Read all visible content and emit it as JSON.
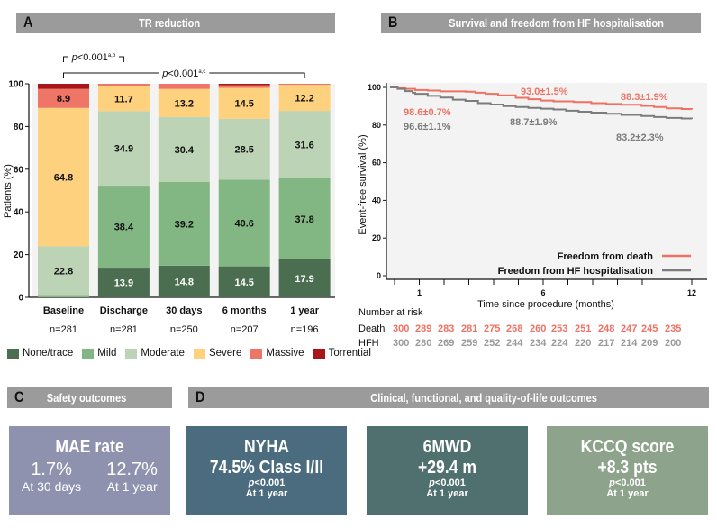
{
  "panels": {
    "A": {
      "letter": "A",
      "title": "TR reduction"
    },
    "B": {
      "letter": "B",
      "title": "Survival and freedom from HF hospitalisation"
    },
    "C": {
      "letter": "C",
      "title": "Safety outcomes"
    },
    "D": {
      "letter": "D",
      "title": "Clinical, functional, and quality-of-life outcomes"
    }
  },
  "chart_data": [
    {
      "type": "bar",
      "stacked": true,
      "title": "TR reduction",
      "ylabel": "Patients (%)",
      "ylim": [
        0,
        100
      ],
      "yticks": [
        "0",
        "20",
        "40",
        "60",
        "80",
        "100"
      ],
      "categories": [
        "Baseline",
        "Discharge",
        "30 days",
        "6 months",
        "1 year"
      ],
      "n_labels": [
        "n=281",
        "n=281",
        "n=250",
        "n=207",
        "n=196"
      ],
      "series": [
        {
          "name": "None/trace",
          "color": "#4a6e4f",
          "values": [
            0,
            13.9,
            14.8,
            14.5,
            17.9
          ],
          "labels": [
            "",
            "13.9",
            "14.8",
            "14.5",
            "17.9"
          ],
          "label_color": "#ffffff"
        },
        {
          "name": "Mild",
          "color": "#82b784",
          "values": [
            1.1,
            38.4,
            39.2,
            40.6,
            37.8
          ],
          "labels": [
            "",
            "38.4",
            "39.2",
            "40.6",
            "37.8"
          ],
          "label_color": "#111111"
        },
        {
          "name": "Moderate",
          "color": "#bcd3b6",
          "values": [
            22.8,
            34.9,
            30.4,
            28.5,
            31.6
          ],
          "labels": [
            "22.8",
            "34.9",
            "30.4",
            "28.5",
            "31.6"
          ],
          "label_color": "#111111"
        },
        {
          "name": "Severe",
          "color": "#fdd17e",
          "values": [
            64.8,
            11.7,
            13.2,
            14.5,
            12.2
          ],
          "labels": [
            "64.8",
            "11.7",
            "13.2",
            "14.5",
            "12.2"
          ],
          "label_color": "#111111"
        },
        {
          "name": "Massive",
          "color": "#ef7567",
          "values": [
            8.9,
            1.1,
            2.4,
            1.2,
            0.5
          ],
          "labels": [
            "8.9",
            "",
            "",
            "",
            ""
          ],
          "label_color": "#111111"
        },
        {
          "name": "Torrential",
          "color": "#a8161a",
          "values": [
            2.4,
            0,
            0,
            0.7,
            0
          ],
          "labels": [
            "",
            "",
            "",
            "",
            ""
          ],
          "label_color": "#ffffff"
        }
      ],
      "annotations": [
        {
          "text": "p<0.001",
          "sup": "a,b",
          "from": "Baseline",
          "to": "Discharge"
        },
        {
          "text": "p<0.001",
          "sup": "a,c",
          "from": "Baseline",
          "to": "1 year"
        }
      ]
    },
    {
      "type": "line",
      "title": "Survival and freedom from HF hospitalisation",
      "ylabel": "Event-free survival (%)",
      "xlabel": "Time since procedure (months)",
      "ylim": [
        0,
        100
      ],
      "xlim": [
        0,
        12.5
      ],
      "yticks": [
        "0",
        "20",
        "40",
        "60",
        "80",
        "100"
      ],
      "xtick_labels": [
        {
          "x": 1,
          "label": "1"
        },
        {
          "x": 6,
          "label": "6"
        },
        {
          "x": 12,
          "label": "12"
        }
      ],
      "xticks_minor": [
        0,
        1,
        2,
        3,
        4,
        5,
        6,
        7,
        8,
        9,
        10,
        11,
        12
      ],
      "legend": "bottom-right",
      "series": [
        {
          "name": "Freedom from death",
          "color": "#ee7163",
          "x": [
            0,
            0.3,
            0.6,
            1,
            1.5,
            2,
            2.5,
            3,
            3.4,
            3.8,
            4.3,
            5,
            5.5,
            6,
            6.5,
            7.3,
            8,
            8.6,
            9.2,
            10,
            10.5,
            11,
            11.6,
            12
          ],
          "y": [
            100,
            99.6,
            99.2,
            98.6,
            98.3,
            97.9,
            97.9,
            97.7,
            97.2,
            96.6,
            95.8,
            94.5,
            93.7,
            93.0,
            92.6,
            92.2,
            91.6,
            91.2,
            90.8,
            90.2,
            89.6,
            88.9,
            88.5,
            88.3
          ]
        },
        {
          "name": "Freedom from HF hospitalisation",
          "color": "#7c7c7c",
          "x": [
            0,
            0.3,
            0.6,
            0.9,
            1,
            1.5,
            2,
            2.5,
            3,
            3.5,
            4,
            4.5,
            5,
            5.5,
            6,
            6.5,
            7,
            7.5,
            8,
            8.6,
            9.2,
            10,
            10.5,
            11,
            11.6,
            12
          ],
          "y": [
            100,
            99.2,
            98.0,
            97.2,
            96.6,
            95.5,
            94.6,
            93.5,
            92.8,
            91.6,
            90.9,
            90.1,
            89.6,
            89.1,
            88.7,
            88.3,
            87.6,
            87.1,
            86.6,
            86.0,
            85.4,
            84.8,
            84.3,
            83.8,
            83.5,
            83.2
          ]
        }
      ],
      "annotations": [
        {
          "text": "98.6±0.7%",
          "series": "Freedom from death"
        },
        {
          "text": "93.0±1.5%",
          "series": "Freedom from death"
        },
        {
          "text": "88.3±1.9%",
          "series": "Freedom from death"
        },
        {
          "text": "96.6±1.1%",
          "series": "Freedom from HF hospitalisation"
        },
        {
          "text": "88.7±1.9%",
          "series": "Freedom from HF hospitalisation"
        },
        {
          "text": "83.2±2.3%",
          "series": "Freedom from HF hospitalisation"
        }
      ],
      "number_at_risk": {
        "title": "Number at risk",
        "rows": [
          {
            "label": "Death",
            "color": "#ee7163",
            "values": [
              "300",
              "289",
              "283",
              "281",
              "275",
              "268",
              "260",
              "253",
              "251",
              "248",
              "247",
              "245",
              "235"
            ]
          },
          {
            "label": "HFH",
            "color": "#9a9a9a",
            "values": [
              "300",
              "280",
              "269",
              "259",
              "252",
              "244",
              "234",
              "224",
              "220",
              "217",
              "214",
              "209",
              "200"
            ]
          }
        ]
      }
    }
  ],
  "cards": {
    "mae": {
      "title": "MAE rate",
      "v1": "1.7%",
      "l1": "At 30 days",
      "v2": "12.7%",
      "l2": "At 1 year",
      "color": "#8f92ae"
    },
    "nyha": {
      "title": "NYHA",
      "value": "74.5% Class I/II",
      "p_italic": "p",
      "p_rest": "<0.001",
      "when": "At 1 year",
      "color": "#4a6c7e"
    },
    "mwd": {
      "title": "6MWD",
      "value": "+29.4 m",
      "p_italic": "p",
      "p_rest": "<0.001",
      "when": "At 1 year",
      "color": "#50706f"
    },
    "kccq": {
      "title": "KCCQ score",
      "value": "+8.3 pts",
      "p_italic": "p",
      "p_rest": "<0.001",
      "when": "At 1 year",
      "color": "#8ea38b"
    }
  }
}
